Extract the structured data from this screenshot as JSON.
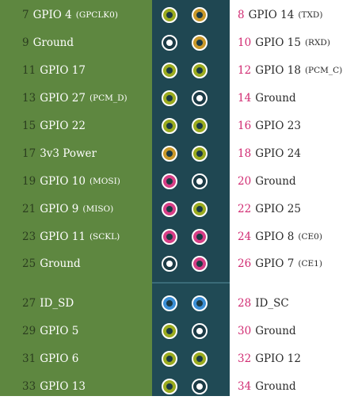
{
  "colors": {
    "gpio": "#9aaa1e",
    "ground": "#1b3a45",
    "power_5v": "#c9982a",
    "power_3v3": "#c9982a",
    "spi": "#d63e86",
    "id_eeprom": "#3b8fd6",
    "left_panel": "#5e8740",
    "header": "#1f4752",
    "even_number": "#d12b72"
  },
  "rows": [
    {
      "left": {
        "num": "7",
        "label": "GPIO 4",
        "sub": "(GPCLK0)",
        "type": "gpio"
      },
      "right": {
        "num": "8",
        "label": "GPIO 14",
        "sub": "(TXD)",
        "type": "power_5v"
      }
    },
    {
      "left": {
        "num": "9",
        "label": "Ground",
        "sub": "",
        "type": "ground"
      },
      "right": {
        "num": "10",
        "label": "GPIO 15",
        "sub": "(RXD)",
        "type": "power_5v"
      }
    },
    {
      "left": {
        "num": "11",
        "label": "GPIO 17",
        "sub": "",
        "type": "gpio"
      },
      "right": {
        "num": "12",
        "label": "GPIO 18",
        "sub": "(PCM_C)",
        "type": "gpio"
      }
    },
    {
      "left": {
        "num": "13",
        "label": "GPIO 27",
        "sub": "(PCM_D)",
        "type": "gpio"
      },
      "right": {
        "num": "14",
        "label": "Ground",
        "sub": "",
        "type": "ground"
      }
    },
    {
      "left": {
        "num": "15",
        "label": "GPIO 22",
        "sub": "",
        "type": "gpio"
      },
      "right": {
        "num": "16",
        "label": "GPIO 23",
        "sub": "",
        "type": "gpio"
      }
    },
    {
      "left": {
        "num": "17",
        "label": "3v3 Power",
        "sub": "",
        "type": "power_3v3"
      },
      "right": {
        "num": "18",
        "label": "GPIO 24",
        "sub": "",
        "type": "gpio"
      }
    },
    {
      "left": {
        "num": "19",
        "label": "GPIO 10",
        "sub": "(MOSI)",
        "type": "spi"
      },
      "right": {
        "num": "20",
        "label": "Ground",
        "sub": "",
        "type": "ground"
      }
    },
    {
      "left": {
        "num": "21",
        "label": "GPIO 9",
        "sub": "(MISO)",
        "type": "spi"
      },
      "right": {
        "num": "22",
        "label": "GPIO 25",
        "sub": "",
        "type": "gpio"
      }
    },
    {
      "left": {
        "num": "23",
        "label": "GPIO 11",
        "sub": "(SCKL)",
        "type": "spi"
      },
      "right": {
        "num": "24",
        "label": "GPIO 8",
        "sub": "(CE0)",
        "type": "spi"
      }
    },
    {
      "left": {
        "num": "25",
        "label": "Ground",
        "sub": "",
        "type": "ground"
      },
      "right": {
        "num": "26",
        "label": "GPIO 7",
        "sub": "(CE1)",
        "type": "spi"
      }
    },
    {
      "left": {
        "num": "27",
        "label": "ID_SD",
        "sub": "",
        "type": "id_eeprom"
      },
      "right": {
        "num": "28",
        "label": "ID_SC",
        "sub": "",
        "type": "id_eeprom"
      }
    },
    {
      "left": {
        "num": "29",
        "label": "GPIO 5",
        "sub": "",
        "type": "gpio"
      },
      "right": {
        "num": "30",
        "label": "Ground",
        "sub": "",
        "type": "ground"
      }
    },
    {
      "left": {
        "num": "31",
        "label": "GPIO 6",
        "sub": "",
        "type": "gpio"
      },
      "right": {
        "num": "32",
        "label": "GPIO 12",
        "sub": "",
        "type": "gpio"
      }
    },
    {
      "left": {
        "num": "33",
        "label": "GPIO 13",
        "sub": "",
        "type": "gpio"
      },
      "right": {
        "num": "34",
        "label": "Ground",
        "sub": "",
        "type": "ground"
      }
    }
  ]
}
